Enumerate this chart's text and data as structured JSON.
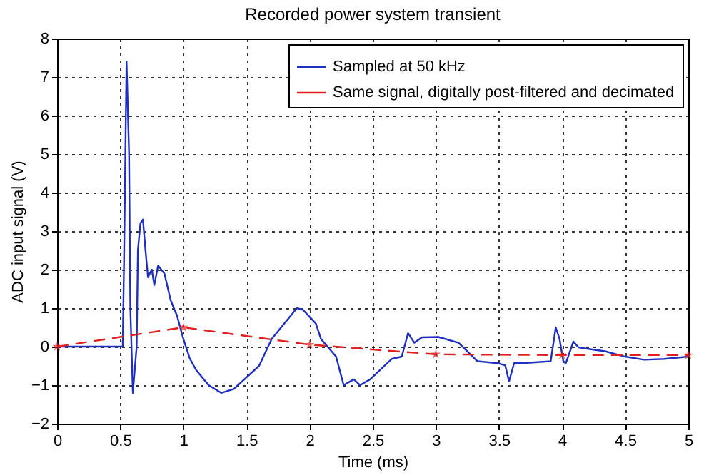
{
  "chart_data": {
    "type": "line",
    "title": "Recorded power system transient",
    "xlabel": "Time (ms)",
    "ylabel": "ADC input signal (V)",
    "xlim": [
      0,
      5
    ],
    "xticks": [
      0,
      0.5,
      1,
      1.5,
      2,
      2.5,
      3,
      3.5,
      4,
      4.5,
      5
    ],
    "ylim": [
      -2,
      8
    ],
    "yticks": [
      -2,
      -1,
      0,
      1,
      2,
      3,
      4,
      5,
      6,
      7,
      8
    ],
    "grid": true,
    "legend": "top right",
    "series": [
      {
        "name": "Sampled at 50 kHz",
        "color": "#1f2fbf",
        "line_style": "solid",
        "marker": "none",
        "x": [
          0,
          0.5,
          0.52,
          0.53,
          0.55,
          0.57,
          0.58,
          0.6,
          0.61,
          0.63,
          0.64,
          0.66,
          0.68,
          0.7,
          0.72,
          0.75,
          0.77,
          0.8,
          0.85,
          0.9,
          0.95,
          1.0,
          1.05,
          1.1,
          1.2,
          1.3,
          1.4,
          1.5,
          1.6,
          1.7,
          1.8,
          1.9,
          1.95,
          2.05,
          2.09,
          2.21,
          2.27,
          2.35,
          2.4,
          2.48,
          2.65,
          2.73,
          2.78,
          2.83,
          2.89,
          3.02,
          3.18,
          3.33,
          3.49,
          3.55,
          3.58,
          3.62,
          3.68,
          3.91,
          3.95,
          3.98,
          4.01,
          4.03,
          4.09,
          4.13,
          4.19,
          4.34,
          4.5,
          4.65,
          4.81,
          5
        ],
        "values": [
          0,
          0,
          0,
          2.2,
          7.4,
          5,
          1,
          -1.2,
          -0.8,
          0,
          2.5,
          3.2,
          3.3,
          2.5,
          1.8,
          2,
          1.6,
          2.1,
          1.9,
          1.2,
          0.8,
          0.2,
          -0.3,
          -0.6,
          -1.0,
          -1.2,
          -1.1,
          -0.8,
          -0.5,
          0.2,
          0.6,
          1.0,
          0.95,
          0.6,
          0.2,
          -0.26,
          -1.0,
          -0.85,
          -1.0,
          -0.85,
          -0.32,
          -0.26,
          0.35,
          0.1,
          0.24,
          0.25,
          0.1,
          -0.38,
          -0.43,
          -0.49,
          -0.9,
          -0.43,
          -0.43,
          -0.38,
          0.5,
          0.2,
          -0.38,
          -0.43,
          0.13,
          -0.02,
          -0.05,
          -0.12,
          -0.26,
          -0.34,
          -0.32,
          -0.26
        ]
      },
      {
        "name": "Same signal, digitally post-filtered and decimated",
        "color": "#e02020",
        "line_style": "dashed",
        "marker": "star",
        "x": [
          0,
          1,
          2,
          3,
          4,
          5
        ],
        "values": [
          0,
          0.5,
          0.05,
          -0.2,
          -0.22,
          -0.22
        ]
      }
    ]
  }
}
